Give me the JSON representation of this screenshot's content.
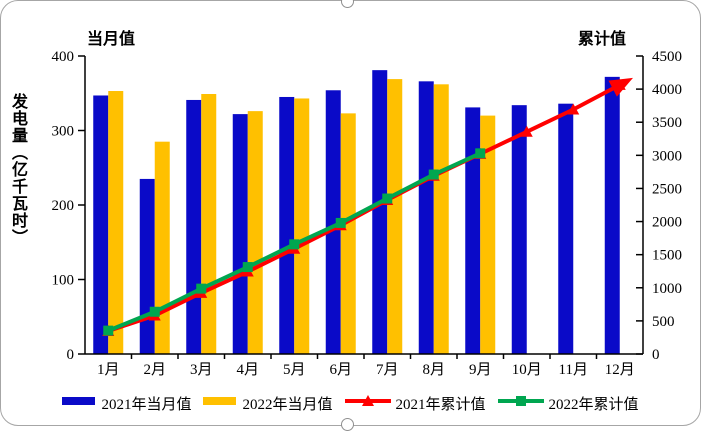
{
  "chart_data": {
    "type": "bar",
    "subtype": "bar-line-combo",
    "left_axis_title": "当月值",
    "right_axis_title": "累计值",
    "ylabel": "发电量（亿千瓦时）",
    "categories": [
      "1月",
      "2月",
      "3月",
      "4月",
      "5月",
      "6月",
      "7月",
      "8月",
      "9月",
      "10月",
      "11月",
      "12月"
    ],
    "left_axis": {
      "min": 0,
      "max": 400,
      "step": 100,
      "ticks": [
        0,
        100,
        200,
        300,
        400
      ]
    },
    "right_axis": {
      "min": 0,
      "max": 4500,
      "step": 500,
      "ticks": [
        0,
        500,
        1000,
        1500,
        2000,
        2500,
        3000,
        3500,
        4000,
        4500
      ]
    },
    "grid": false,
    "legend_position": "bottom",
    "series": [
      {
        "name": "2021年当月值",
        "type": "bar",
        "axis": "left",
        "color": "#0A0AC8",
        "values": [
          347,
          235,
          341,
          322,
          345,
          354,
          381,
          366,
          331,
          334,
          336,
          372
        ]
      },
      {
        "name": "2022年当月值",
        "type": "bar",
        "axis": "left",
        "color": "#FFC000",
        "values": [
          353,
          285,
          349,
          326,
          343,
          323,
          369,
          362,
          320,
          null,
          null,
          null
        ]
      },
      {
        "name": "2021年累计值",
        "type": "line",
        "axis": "right",
        "color": "#FF0000",
        "marker": "triangle",
        "end_arrow": true,
        "values": [
          347,
          582,
          923,
          1245,
          1590,
          1944,
          2325,
          2691,
          3022,
          3356,
          3692,
          4064
        ]
      },
      {
        "name": "2022年累计值",
        "type": "line",
        "axis": "right",
        "color": "#00A650",
        "marker": "square",
        "end_arrow": false,
        "values": [
          353,
          638,
          987,
          1313,
          1656,
          1979,
          2348,
          2710,
          3030,
          null,
          null,
          null
        ]
      }
    ]
  }
}
